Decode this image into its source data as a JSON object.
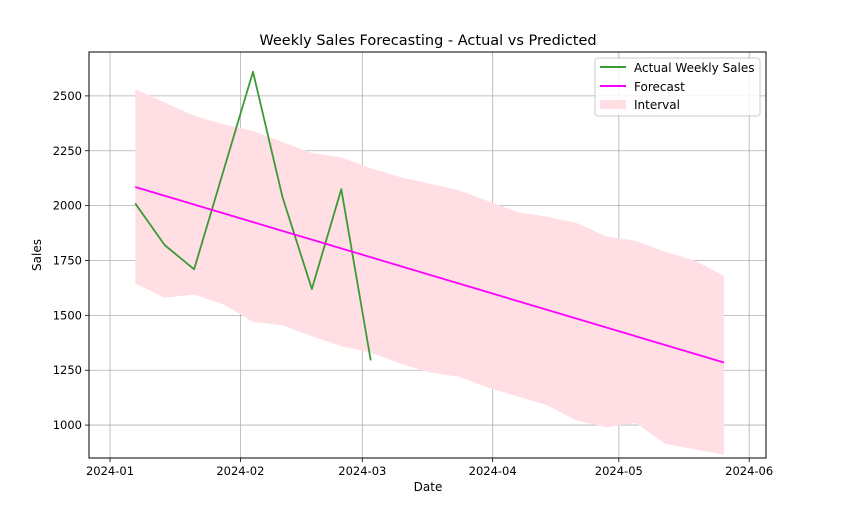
{
  "chart_data": {
    "type": "line",
    "title": "Weekly Sales Forecasting - Actual vs Predicted",
    "xlabel": "Date",
    "ylabel": "Sales",
    "xlim": [
      "2023-12-27",
      "2024-06-05"
    ],
    "ylim": [
      850,
      2700
    ],
    "x_ticks": [
      {
        "date": "2024-01-01",
        "label": "2024-01"
      },
      {
        "date": "2024-02-01",
        "label": "2024-02"
      },
      {
        "date": "2024-03-01",
        "label": "2024-03"
      },
      {
        "date": "2024-04-01",
        "label": "2024-04"
      },
      {
        "date": "2024-05-01",
        "label": "2024-05"
      },
      {
        "date": "2024-06-01",
        "label": "2024-06"
      }
    ],
    "y_ticks": [
      1000,
      1250,
      1500,
      1750,
      2000,
      2250,
      2500
    ],
    "grid": true,
    "legend_position": "top-right",
    "series": [
      {
        "name": "Actual Weekly Sales",
        "type": "line",
        "color": "#3a9b35",
        "x": [
          "2024-01-07",
          "2024-01-14",
          "2024-01-21",
          "2024-01-28",
          "2024-02-04",
          "2024-02-11",
          "2024-02-18",
          "2024-02-25",
          "2024-03-03"
        ],
        "y": [
          2010,
          1820,
          1710,
          2160,
          2610,
          2040,
          1620,
          2075,
          1295
        ]
      },
      {
        "name": "Forecast",
        "type": "line",
        "color": "#ff00ff",
        "x": [
          "2024-01-07",
          "2024-05-26"
        ],
        "y": [
          2085,
          1285
        ]
      },
      {
        "name": "Interval",
        "type": "area",
        "color": "#ffdfe4",
        "x": [
          "2024-01-07",
          "2024-01-14",
          "2024-01-21",
          "2024-01-28",
          "2024-02-04",
          "2024-02-11",
          "2024-02-18",
          "2024-02-25",
          "2024-03-03",
          "2024-03-10",
          "2024-03-17",
          "2024-03-24",
          "2024-03-31",
          "2024-04-07",
          "2024-04-14",
          "2024-04-21",
          "2024-04-28",
          "2024-05-05",
          "2024-05-12",
          "2024-05-19",
          "2024-05-26"
        ],
        "upper": [
          2530,
          2470,
          2410,
          2370,
          2340,
          2290,
          2240,
          2220,
          2170,
          2130,
          2100,
          2070,
          2020,
          1970,
          1950,
          1920,
          1860,
          1840,
          1790,
          1750,
          1680
        ],
        "lower": [
          1645,
          1580,
          1595,
          1550,
          1470,
          1455,
          1405,
          1360,
          1330,
          1280,
          1240,
          1220,
          1170,
          1130,
          1090,
          1020,
          990,
          1010,
          915,
          890,
          865
        ]
      }
    ]
  }
}
